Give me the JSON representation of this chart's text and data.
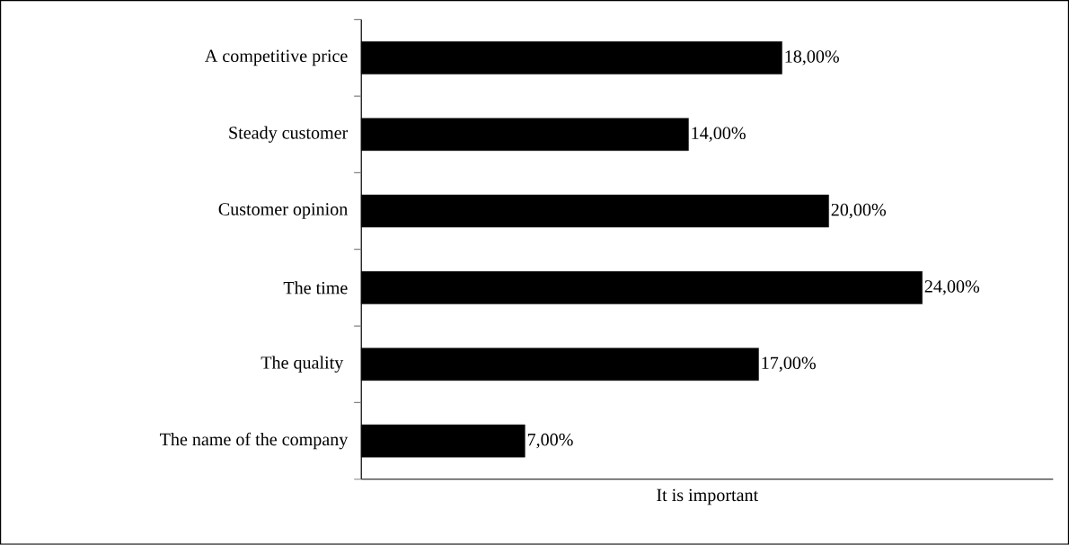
{
  "chart_data": {
    "type": "bar",
    "orientation": "horizontal",
    "xlabel": "It is important",
    "categories": [
      "A competitive price",
      "Steady customer",
      "Customer opinion",
      "The time",
      "The quality ",
      "The name of the company"
    ],
    "values": [
      18,
      14,
      20,
      24,
      17,
      7
    ],
    "value_labels": [
      "18,00%",
      "14,00%",
      "20,00%",
      "24,00%",
      "17,00%",
      "7,00%"
    ],
    "color": "#000000",
    "xlim": [
      0,
      29.6
    ],
    "tick_labels": "y"
  }
}
